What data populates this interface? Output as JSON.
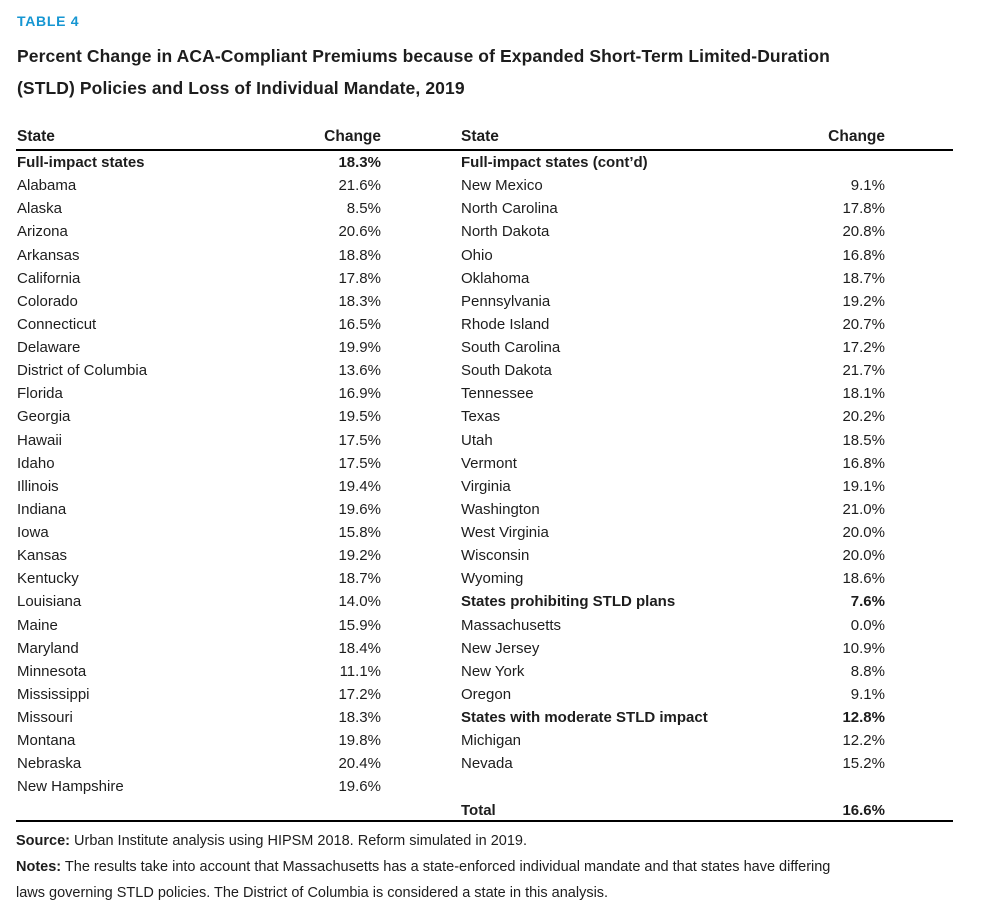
{
  "page": {
    "table_label": "TABLE 4",
    "title_lines": [
      "Percent Change in ACA-Compliant Premiums because of Expanded Short-Term Limited-Duration",
      "(STLD) Policies and Loss of Individual Mandate, 2019"
    ]
  },
  "colors": {
    "accent_blue": "#1696d2",
    "text_color": "#1d1d1d"
  },
  "table": {
    "header": {
      "left_state": "State",
      "left_change": "Change",
      "right_state": "State",
      "right_change": "Change"
    },
    "left_rows": [
      {
        "state": "Full-impact states",
        "change": "18.3%",
        "bold": true
      },
      {
        "state": "Alabama",
        "change": "21.6%"
      },
      {
        "state": "Alaska",
        "change": "8.5%"
      },
      {
        "state": "Arizona",
        "change": "20.6%"
      },
      {
        "state": "Arkansas",
        "change": "18.8%"
      },
      {
        "state": "California",
        "change": "17.8%"
      },
      {
        "state": "Colorado",
        "change": "18.3%"
      },
      {
        "state": "Connecticut",
        "change": "16.5%"
      },
      {
        "state": "Delaware",
        "change": "19.9%"
      },
      {
        "state": "District of Columbia",
        "change": "13.6%"
      },
      {
        "state": "Florida",
        "change": "16.9%"
      },
      {
        "state": "Georgia",
        "change": "19.5%"
      },
      {
        "state": "Hawaii",
        "change": "17.5%"
      },
      {
        "state": "Idaho",
        "change": "17.5%"
      },
      {
        "state": "Illinois",
        "change": "19.4%"
      },
      {
        "state": "Indiana",
        "change": "19.6%"
      },
      {
        "state": "Iowa",
        "change": "15.8%"
      },
      {
        "state": "Kansas",
        "change": "19.2%"
      },
      {
        "state": "Kentucky",
        "change": "18.7%"
      },
      {
        "state": "Louisiana",
        "change": "14.0%"
      },
      {
        "state": "Maine",
        "change": "15.9%"
      },
      {
        "state": "Maryland",
        "change": "18.4%"
      },
      {
        "state": "Minnesota",
        "change": "11.1%"
      },
      {
        "state": "Mississippi",
        "change": "17.2%"
      },
      {
        "state": "Missouri",
        "change": "18.3%"
      },
      {
        "state": "Montana",
        "change": "19.8%"
      },
      {
        "state": "Nebraska",
        "change": "20.4%"
      },
      {
        "state": "New Hampshire",
        "change": "19.6%"
      }
    ],
    "right_rows": [
      {
        "state": "Full-impact states (cont’d)",
        "change": "",
        "bold": true
      },
      {
        "state": "New Mexico",
        "change": "9.1%"
      },
      {
        "state": "North Carolina",
        "change": "17.8%"
      },
      {
        "state": "North Dakota",
        "change": "20.8%"
      },
      {
        "state": "Ohio",
        "change": "16.8%"
      },
      {
        "state": "Oklahoma",
        "change": "18.7%"
      },
      {
        "state": "Pennsylvania",
        "change": "19.2%"
      },
      {
        "state": "Rhode Island",
        "change": "20.7%"
      },
      {
        "state": "South Carolina",
        "change": "17.2%"
      },
      {
        "state": "South Dakota",
        "change": "21.7%"
      },
      {
        "state": "Tennessee",
        "change": "18.1%"
      },
      {
        "state": "Texas",
        "change": "20.2%"
      },
      {
        "state": "Utah",
        "change": "18.5%"
      },
      {
        "state": "Vermont",
        "change": "16.8%"
      },
      {
        "state": "Virginia",
        "change": "19.1%"
      },
      {
        "state": "Washington",
        "change": "21.0%"
      },
      {
        "state": "West Virginia",
        "change": "20.0%"
      },
      {
        "state": "Wisconsin",
        "change": "20.0%"
      },
      {
        "state": "Wyoming",
        "change": "18.6%"
      },
      {
        "state": "States prohibiting STLD plans",
        "change": "7.6%",
        "bold": true
      },
      {
        "state": "Massachusetts",
        "change": "0.0%"
      },
      {
        "state": "New Jersey",
        "change": "10.9%"
      },
      {
        "state": "New York",
        "change": "8.8%"
      },
      {
        "state": "Oregon",
        "change": "9.1%"
      },
      {
        "state": "States with moderate STLD impact",
        "change": "12.8%",
        "bold": true
      },
      {
        "state": "Michigan",
        "change": "12.2%"
      },
      {
        "state": "Nevada",
        "change": "15.2%"
      }
    ],
    "total_row": {
      "state": "Total",
      "change": "16.6%",
      "bold": true
    }
  },
  "footer": {
    "source_label": "Source:",
    "source_text": "Urban Institute analysis using HIPSM 2018. Reform simulated in 2019.",
    "notes_label": "Notes:",
    "notes_line1": "The results take into account that Massachusetts has a state-enforced individual mandate and that states have differing",
    "notes_line2": "laws governing STLD policies. The District of Columbia is considered a state in this analysis."
  }
}
